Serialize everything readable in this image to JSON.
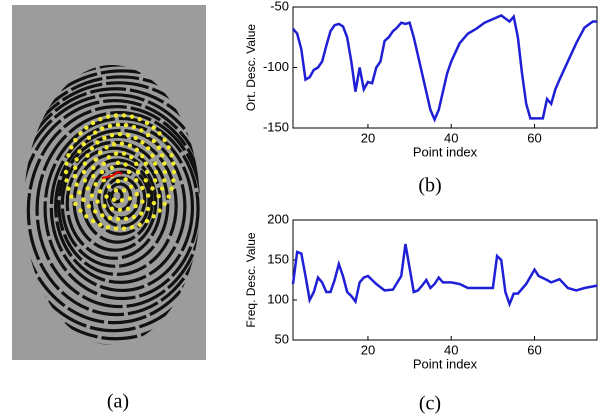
{
  "captions": [
    "(a)",
    "(b)",
    "(c)"
  ],
  "chart_data": [
    {
      "type": "line",
      "ylabel": "Ort. Desc. Value",
      "xlabel": "Point index",
      "xlim": [
        2,
        75
      ],
      "ylim": [
        -150,
        -50
      ],
      "xticks": [
        20,
        40,
        60
      ],
      "yticks": [
        -150,
        -100,
        -50
      ],
      "x": [
        2,
        3,
        4,
        5,
        6,
        7,
        8,
        9,
        10,
        11,
        12,
        13,
        14,
        15,
        16,
        17,
        18,
        19,
        20,
        21,
        22,
        23,
        24,
        25,
        26,
        27,
        28,
        29,
        30,
        31,
        32,
        33,
        34,
        35,
        36,
        37,
        38,
        39,
        40,
        42,
        44,
        46,
        48,
        50,
        52,
        54,
        55,
        56,
        57,
        58,
        59,
        60,
        62,
        63,
        64,
        65,
        66,
        68,
        70,
        72,
        74,
        75
      ],
      "series": [
        {
          "color": "#1f1fd6",
          "values": [
            -68,
            -72,
            -85,
            -110,
            -108,
            -102,
            -100,
            -95,
            -82,
            -70,
            -65,
            -64,
            -66,
            -75,
            -95,
            -120,
            -100,
            -118,
            -112,
            -113,
            -100,
            -95,
            -78,
            -75,
            -70,
            -67,
            -63,
            -64,
            -63,
            -75,
            -90,
            -105,
            -120,
            -135,
            -143,
            -135,
            -120,
            -105,
            -95,
            -80,
            -72,
            -68,
            -63,
            -60,
            -57,
            -62,
            -58,
            -75,
            -105,
            -130,
            -142,
            -142,
            -142,
            -126,
            -130,
            -118,
            -110,
            -95,
            -80,
            -67,
            -62,
            -62
          ]
        }
      ]
    },
    {
      "type": "line",
      "ylabel": "Freq. Desc. Value",
      "xlabel": "Point index",
      "xlim": [
        2,
        75
      ],
      "ylim": [
        50,
        200
      ],
      "xticks": [
        20,
        40,
        60
      ],
      "yticks": [
        50,
        100,
        150,
        200
      ],
      "x": [
        2,
        3,
        4,
        5,
        6,
        7,
        8,
        9,
        10,
        11,
        12,
        13,
        14,
        15,
        16,
        17,
        18,
        19,
        20,
        22,
        24,
        26,
        28,
        29,
        30,
        31,
        32,
        33,
        34,
        35,
        36,
        37,
        38,
        40,
        42,
        44,
        46,
        48,
        50,
        51,
        52,
        53,
        54,
        55,
        56,
        58,
        60,
        61,
        63,
        64,
        66,
        68,
        70,
        72,
        75
      ],
      "series": [
        {
          "color": "#1f1fd6",
          "values": [
            120,
            160,
            158,
            130,
            100,
            110,
            128,
            122,
            110,
            110,
            125,
            145,
            130,
            110,
            105,
            98,
            122,
            128,
            130,
            120,
            112,
            113,
            130,
            170,
            140,
            110,
            112,
            118,
            125,
            115,
            120,
            128,
            122,
            122,
            120,
            115,
            115,
            115,
            115,
            155,
            150,
            110,
            95,
            108,
            108,
            120,
            138,
            130,
            125,
            122,
            126,
            115,
            112,
            115,
            118
          ]
        }
      ]
    }
  ]
}
